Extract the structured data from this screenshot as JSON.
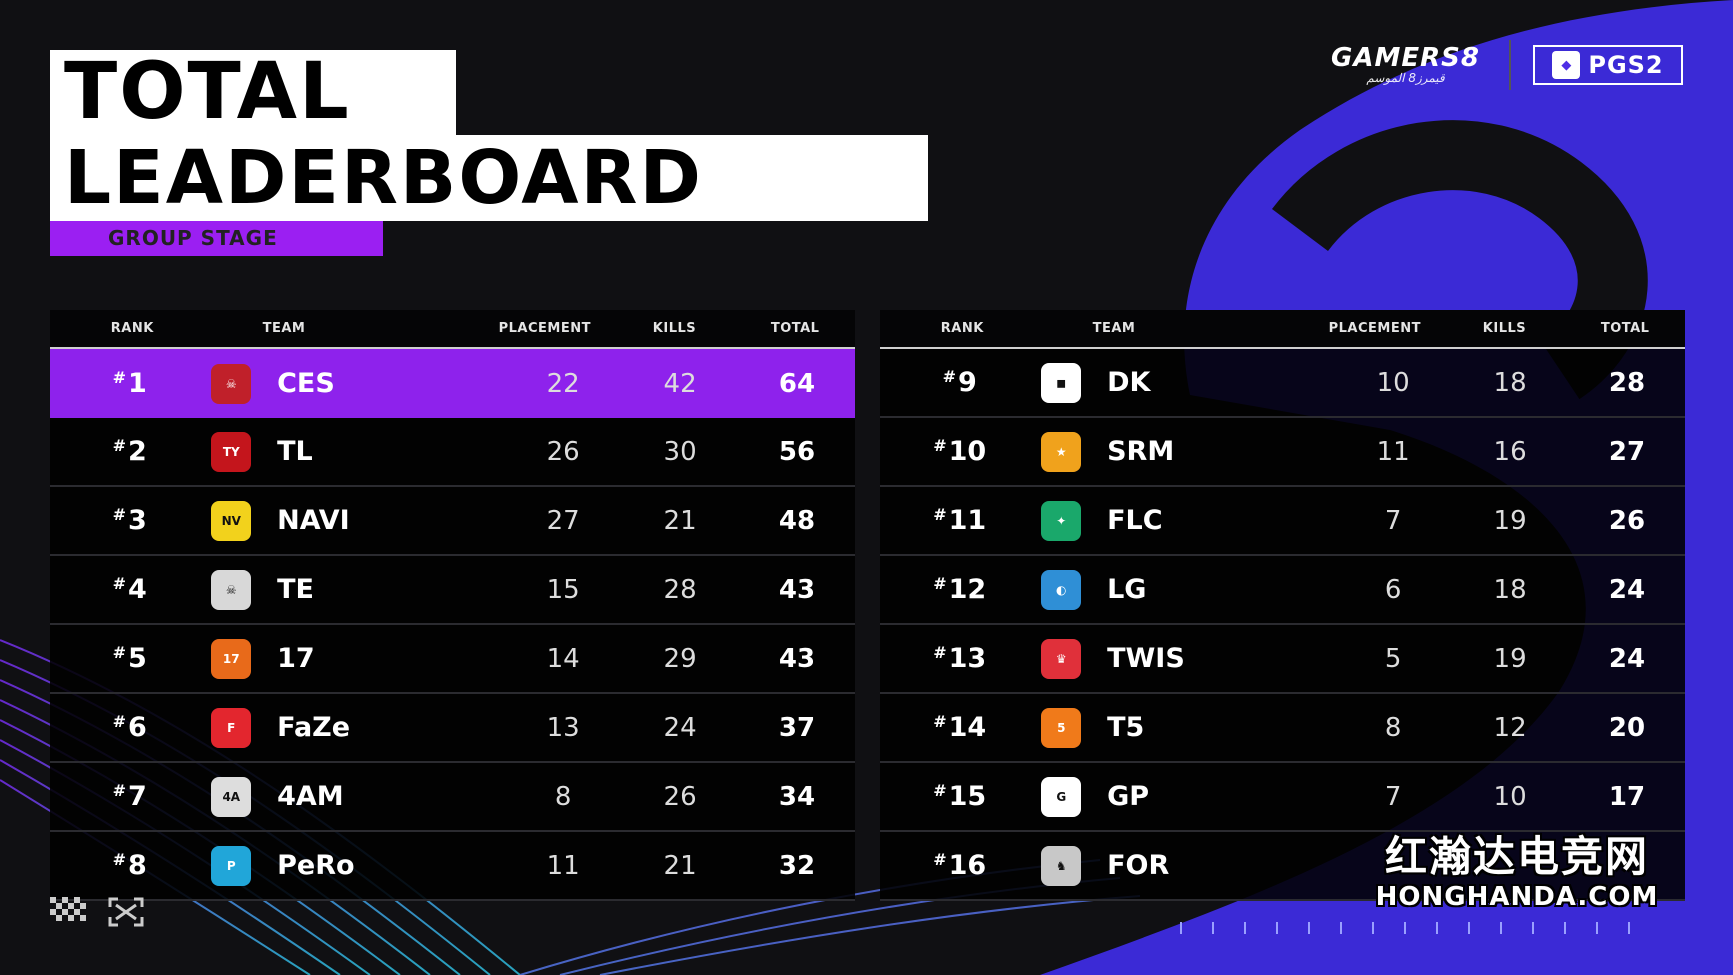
{
  "header": {
    "title_line1": "TOTAL",
    "title_line2": "LEADERBOARD",
    "subtitle": "GROUP STAGE"
  },
  "brands": {
    "sponsor_main": "GAMERS8",
    "sponsor_sub": "قيمرز8 الموسم",
    "event": "PGS2"
  },
  "columns": {
    "rank": "RANK",
    "team": "TEAM",
    "placement": "PLACEMENT",
    "kills": "KILLS",
    "total": "TOTAL"
  },
  "leaderboard_left": [
    {
      "rank": "1",
      "team": "CES",
      "placement": "22",
      "kills": "42",
      "total": "64",
      "logo": "ces-logo"
    },
    {
      "rank": "2",
      "team": "TL",
      "placement": "26",
      "kills": "30",
      "total": "56",
      "logo": "tyloo-logo"
    },
    {
      "rank": "3",
      "team": "NAVI",
      "placement": "27",
      "kills": "21",
      "total": "48",
      "logo": "navi-logo"
    },
    {
      "rank": "4",
      "team": "TE",
      "placement": "15",
      "kills": "28",
      "total": "43",
      "logo": "te-logo"
    },
    {
      "rank": "5",
      "team": "17",
      "placement": "14",
      "kills": "29",
      "total": "43",
      "logo": "17-gaming-logo"
    },
    {
      "rank": "6",
      "team": "FaZe",
      "placement": "13",
      "kills": "24",
      "total": "37",
      "logo": "faze-logo"
    },
    {
      "rank": "7",
      "team": "4AM",
      "placement": "8",
      "kills": "26",
      "total": "34",
      "logo": "4am-logo"
    },
    {
      "rank": "8",
      "team": "PeRo",
      "placement": "11",
      "kills": "21",
      "total": "32",
      "logo": "pero-logo"
    }
  ],
  "leaderboard_right": [
    {
      "rank": "9",
      "team": "DK",
      "placement": "10",
      "kills": "18",
      "total": "28",
      "logo": "dk-logo"
    },
    {
      "rank": "10",
      "team": "SRM",
      "placement": "11",
      "kills": "16",
      "total": "27",
      "logo": "srm-logo"
    },
    {
      "rank": "11",
      "team": "FLC",
      "placement": "7",
      "kills": "19",
      "total": "26",
      "logo": "falcons-logo"
    },
    {
      "rank": "12",
      "team": "LG",
      "placement": "6",
      "kills": "18",
      "total": "24",
      "logo": "luminosity-logo"
    },
    {
      "rank": "13",
      "team": "TWIS",
      "placement": "5",
      "kills": "19",
      "total": "24",
      "logo": "twis-logo"
    },
    {
      "rank": "14",
      "team": "T5",
      "placement": "8",
      "kills": "12",
      "total": "20",
      "logo": "t5-logo"
    },
    {
      "rank": "15",
      "team": "GP",
      "placement": "7",
      "kills": "10",
      "total": "17",
      "logo": "gp-logo"
    },
    {
      "rank": "16",
      "team": "FOR",
      "placement": "",
      "kills": "",
      "total": "",
      "logo": "for-logo"
    }
  ],
  "watermark": {
    "cn": "红瀚达电竞网",
    "en": "HONGHANDA.COM"
  },
  "colors": {
    "highlight": "#8e22ec",
    "accent_blue": "#3d2fd8",
    "background": "#101013"
  }
}
